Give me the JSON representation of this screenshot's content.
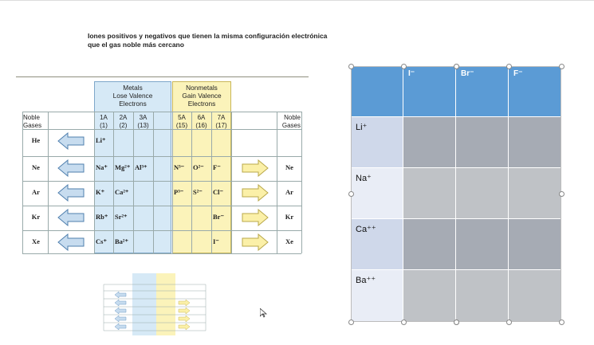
{
  "page_title": {
    "line1": "Iones positivos y negativos que tienen la misma configuración electrónica",
    "line2": "que el gas noble más cercano"
  },
  "figure": {
    "metals_title": [
      "Metals",
      "Lose Valence",
      "Electrons"
    ],
    "nonmetals_title": [
      "Nonmetals",
      "Gain Valence",
      "Electrons"
    ],
    "left_header": [
      "Noble",
      "Gases"
    ],
    "right_header": [
      "Noble",
      "Gases"
    ],
    "groups": [
      {
        "num": "1A",
        "sub": "(1)"
      },
      {
        "num": "2A",
        "sub": "(2)"
      },
      {
        "num": "3A",
        "sub": "(13)"
      },
      {
        "num": "5A",
        "sub": "(15)"
      },
      {
        "num": "6A",
        "sub": "(16)"
      },
      {
        "num": "7A",
        "sub": "(17)"
      }
    ],
    "rows": [
      {
        "gas_left": "He",
        "ions": [
          "Li⁺",
          "",
          "",
          "",
          "",
          ""
        ],
        "gas_right": "",
        "right_arrow": false
      },
      {
        "gas_left": "Ne",
        "ions": [
          "Na⁺",
          "Mg²⁺",
          "Al³⁺",
          "N³⁻",
          "O²⁻",
          "F⁻"
        ],
        "gas_right": "Ne",
        "right_arrow": true
      },
      {
        "gas_left": "Ar",
        "ions": [
          "K⁺",
          "Ca²⁺",
          "",
          "P³⁻",
          "S²⁻",
          "Cl⁻"
        ],
        "gas_right": "Ar",
        "right_arrow": true
      },
      {
        "gas_left": "Kr",
        "ions": [
          "Rb⁺",
          "Sr²⁺",
          "",
          "",
          "",
          "Br⁻"
        ],
        "gas_right": "Kr",
        "right_arrow": true
      },
      {
        "gas_left": "Xe",
        "ions": [
          "Cs⁺",
          "Ba²⁺",
          "",
          "",
          "",
          "I⁻"
        ],
        "gas_right": "Xe",
        "right_arrow": true
      }
    ]
  },
  "thumbnail": {
    "icon": "slide-thumbnail"
  },
  "table": {
    "columns": [
      "",
      "I⁻",
      "Br⁻",
      "F⁻"
    ],
    "rows": [
      "Li⁺",
      "Na⁺",
      "Ca⁺⁺",
      "Ba⁺⁺"
    ]
  },
  "colors": {
    "metals_band": "#d6e9f6",
    "nonmetals_band": "#fbf3ba",
    "table_header": "#5b9bd5",
    "table_data": "#a6abb4"
  },
  "cursor": {
    "icon": "mouse-pointer-icon"
  }
}
